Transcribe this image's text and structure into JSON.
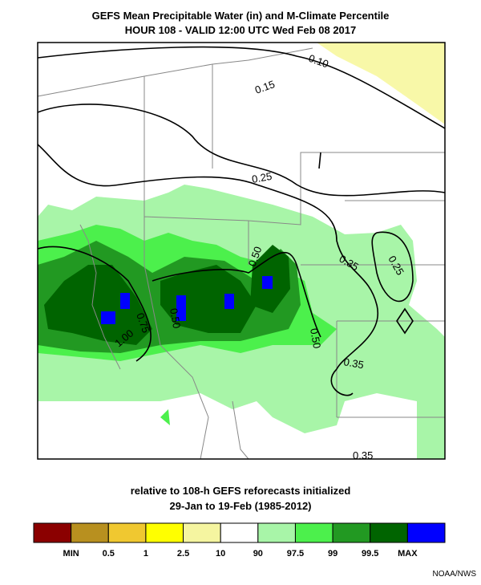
{
  "header": {
    "title": "GEFS Mean Precipitable Water (in) and M-Climate Percentile",
    "subtitle": "HOUR 108 - VALID 12:00 UTC Wed Feb 08 2017"
  },
  "contour_labels": [
    "0.10",
    "0.15",
    "0.25",
    "0.35",
    "0.25",
    "0.50",
    "0.75",
    "0.50",
    "1.00",
    "0.50",
    "0.35",
    "0.35"
  ],
  "footer": {
    "line1": "relative to 108-h GEFS reforecasts initialized",
    "line2": "29-Jan to 19-Feb (1985-2012)"
  },
  "colorbar": {
    "colors": [
      "#8b0000",
      "#b8901f",
      "#f0c830",
      "#ffff00",
      "#f5f5a0",
      "#ffffff",
      "#a8f5a8",
      "#4cf04c",
      "#229922",
      "#006400",
      "#0000ff"
    ],
    "labels": [
      "MIN",
      "0.5",
      "1",
      "2.5",
      "10",
      "90",
      "97.5",
      "99",
      "99.5",
      "MAX"
    ]
  },
  "credit": "NOAA/NWS"
}
